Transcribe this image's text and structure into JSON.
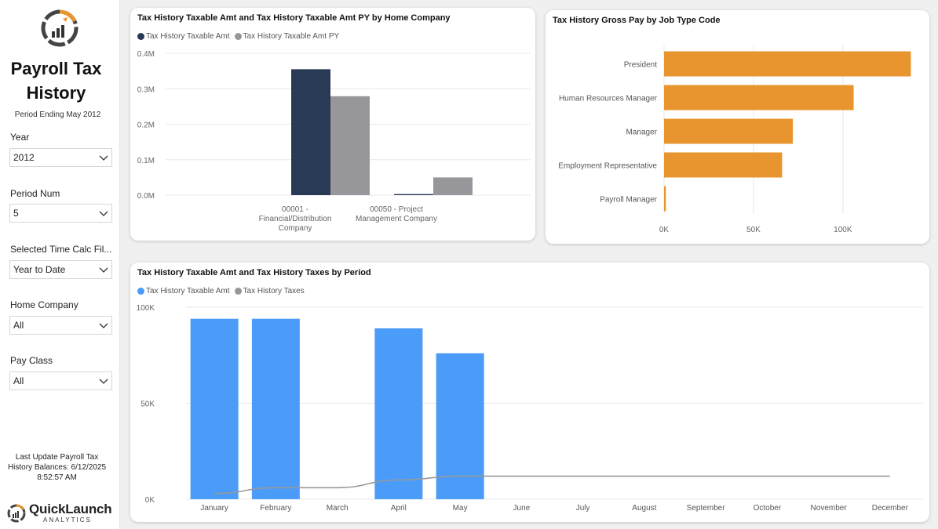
{
  "sidebar": {
    "title": "Payroll Tax History",
    "period_ending": "Period Ending May 2012",
    "slicers": [
      {
        "label": "Year",
        "value": "2012"
      },
      {
        "label": "Period Num",
        "value": "5"
      },
      {
        "label": "Selected Time Calc Fil...",
        "value": "Year to Date"
      },
      {
        "label": "Home Company",
        "value": "All"
      },
      {
        "label": "Pay Class",
        "value": "All"
      }
    ],
    "last_update_line1": "Last Update Payroll Tax",
    "last_update_line2": "History Balances: 6/12/2025",
    "last_update_line3": "8:52:57 AM",
    "brand_name": "QuickLaunch",
    "brand_sub": "ANALYTICS"
  },
  "colors": {
    "navy": "#283a56",
    "gray": "#97979b",
    "orange": "#e8952f",
    "blue": "#4b9cf8",
    "line_gray": "#999999"
  },
  "chart_data": [
    {
      "type": "bar",
      "title": "Tax History Taxable Amt  and Tax History Taxable Amt PY by Home Company",
      "categories": [
        "00001 - Financial/Distribution Company",
        "00050 - Project Management Company"
      ],
      "category_lines": [
        [
          "00001 -",
          "Financial/Distribution",
          "Company"
        ],
        [
          "00050 - Project",
          "Management Company"
        ]
      ],
      "series": [
        {
          "name": "Tax History Taxable Amt",
          "values": [
            355000,
            3000
          ]
        },
        {
          "name": "Tax History Taxable Amt PY",
          "values": [
            279000,
            50000
          ]
        }
      ],
      "ylim": [
        0,
        400000
      ],
      "yticks": [
        "0.0M",
        "0.1M",
        "0.2M",
        "0.3M",
        "0.4M"
      ],
      "legend": "top-left",
      "grid": true
    },
    {
      "type": "bar",
      "orientation": "horizontal",
      "title": "Tax History Gross Pay by Job Type Code",
      "categories": [
        "President",
        "Human Resources Manager",
        "Manager",
        "Employment Representative",
        "Payroll Manager"
      ],
      "values": [
        138000,
        106000,
        72000,
        66000,
        1000
      ],
      "xlim": [
        0,
        140000
      ],
      "xticks": [
        "0K",
        "50K",
        "100K"
      ],
      "grid": true
    },
    {
      "type": "bar",
      "title": "Tax History Taxable Amt and Tax History Taxes by Period",
      "categories": [
        "January",
        "February",
        "March",
        "April",
        "May",
        "June",
        "July",
        "August",
        "September",
        "October",
        "November",
        "December"
      ],
      "series": [
        {
          "name": "Tax History Taxable Amt",
          "type": "bar",
          "values": [
            94000,
            94000,
            null,
            89000,
            76000,
            null,
            null,
            null,
            null,
            null,
            null,
            null
          ]
        },
        {
          "name": "Tax History Taxes",
          "type": "line",
          "values": [
            3000,
            6000,
            6000,
            10000,
            12000,
            12000,
            12000,
            12000,
            12000,
            12000,
            12000,
            12000
          ]
        }
      ],
      "ylim": [
        0,
        100000
      ],
      "yticks": [
        "0K",
        "50K",
        "100K"
      ],
      "legend": "top-left",
      "grid": true
    }
  ]
}
